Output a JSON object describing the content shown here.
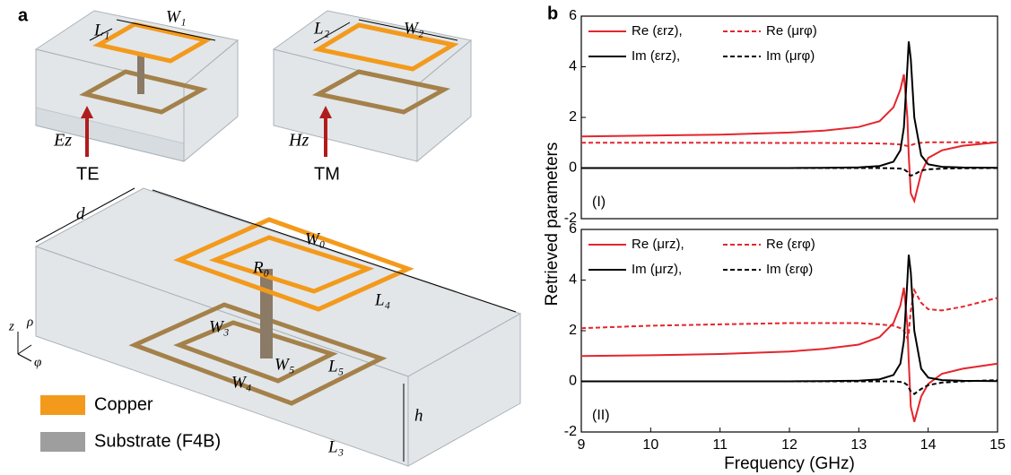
{
  "diagram": {
    "panel_label": "a",
    "L1": "L₁",
    "W1": "W₁",
    "L2": "L₂",
    "W2": "W₂",
    "Ez": "Ez",
    "TE": "TE",
    "Hz": "Hz",
    "TM": "TM",
    "d": "d",
    "W0": "W₀",
    "R0": "R₀",
    "L4": "L₄",
    "W3": "W₃",
    "W5": "W₅",
    "L5": "L₅",
    "W4": "W₄",
    "L3": "L₃",
    "h": "h",
    "axis_z": "z",
    "axis_rho": "ρ",
    "axis_phi": "φ",
    "legend": [
      "Copper",
      "Substrate (F4B)"
    ]
  },
  "panel_label_b": "b",
  "chart_data": [
    {
      "type": "line",
      "annotation": "(I)",
      "ylabel": "Retrieved parameters",
      "x": [
        9,
        10,
        11,
        12,
        12.5,
        13,
        13.3,
        13.5,
        13.6,
        13.65,
        13.7,
        13.72,
        13.75,
        13.8,
        13.9,
        14,
        14.2,
        14.5,
        15
      ],
      "xlim": [
        9,
        15
      ],
      "ylim": [
        -2,
        6
      ],
      "yticks": [
        -2,
        0,
        2,
        4,
        6
      ],
      "series": [
        {
          "name": "Re (εrz),",
          "color": "#e3262d",
          "dashed": false,
          "values": [
            1.25,
            1.28,
            1.32,
            1.4,
            1.48,
            1.62,
            1.85,
            2.4,
            3.1,
            3.7,
            2.0,
            0.5,
            -1.0,
            -1.3,
            -0.2,
            0.4,
            0.7,
            0.88,
            1.02
          ]
        },
        {
          "name": "Re (μrφ)",
          "color": "#e3262d",
          "dashed": true,
          "values": [
            1.0,
            1.0,
            1.0,
            0.99,
            0.99,
            0.98,
            0.97,
            0.95,
            0.93,
            0.9,
            0.87,
            0.87,
            0.9,
            0.95,
            1.0,
            1.02,
            1.02,
            1.02,
            1.01
          ]
        },
        {
          "name": "Im (εrz),",
          "color": "#000000",
          "dashed": false,
          "values": [
            0,
            0,
            0,
            0,
            0.01,
            0.03,
            0.08,
            0.25,
            0.7,
            1.6,
            4.0,
            5.0,
            4.3,
            2.0,
            0.5,
            0.15,
            0.05,
            0.02,
            0.01
          ]
        },
        {
          "name": "Im (μrφ)",
          "color": "#000000",
          "dashed": true,
          "values": [
            0,
            0,
            0,
            0,
            0,
            0,
            0,
            -0.01,
            -0.02,
            -0.05,
            -0.15,
            -0.25,
            -0.3,
            -0.25,
            -0.1,
            -0.05,
            -0.02,
            -0.01,
            0
          ]
        }
      ]
    },
    {
      "type": "line",
      "annotation": "(II)",
      "xlabel": "Frequency (GHz)",
      "x": [
        9,
        10,
        11,
        12,
        12.5,
        13,
        13.3,
        13.5,
        13.6,
        13.65,
        13.7,
        13.72,
        13.75,
        13.8,
        13.9,
        14,
        14.2,
        14.5,
        15
      ],
      "xlim": [
        9,
        15
      ],
      "xticks": [
        9,
        10,
        11,
        12,
        13,
        14,
        15
      ],
      "ylim": [
        -2,
        6
      ],
      "yticks": [
        -2,
        0,
        2,
        4,
        6
      ],
      "series": [
        {
          "name": "Re (μrz),",
          "color": "#e3262d",
          "dashed": false,
          "values": [
            1.0,
            1.03,
            1.08,
            1.18,
            1.28,
            1.45,
            1.75,
            2.3,
            3.0,
            3.7,
            2.2,
            0.8,
            -1.0,
            -1.6,
            -0.6,
            -0.1,
            0.3,
            0.5,
            0.7
          ]
        },
        {
          "name": "Re (εrφ)",
          "color": "#e3262d",
          "dashed": true,
          "values": [
            2.1,
            2.2,
            2.25,
            2.3,
            2.3,
            2.3,
            2.25,
            2.2,
            2.1,
            2.0,
            1.7,
            1.9,
            2.8,
            3.6,
            3.1,
            2.85,
            2.8,
            2.95,
            3.3
          ]
        },
        {
          "name": "Im (μrz),",
          "color": "#000000",
          "dashed": false,
          "values": [
            0,
            0,
            0,
            0,
            0.01,
            0.03,
            0.08,
            0.25,
            0.7,
            1.6,
            4.0,
            5.0,
            4.3,
            2.0,
            0.5,
            0.15,
            0.05,
            0.02,
            0.01
          ]
        },
        {
          "name": "Im (εrφ)",
          "color": "#000000",
          "dashed": true,
          "values": [
            0,
            0,
            0,
            0,
            0,
            0,
            0,
            0,
            -0.02,
            -0.05,
            -0.15,
            -0.25,
            -0.4,
            -0.5,
            -0.3,
            -0.15,
            -0.05,
            0,
            0.05
          ]
        }
      ]
    }
  ]
}
